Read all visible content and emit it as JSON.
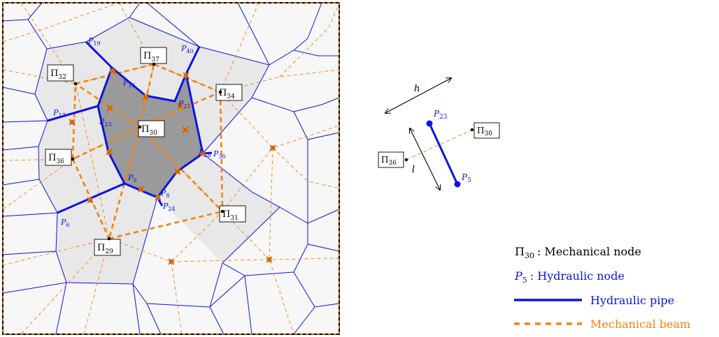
{
  "colors": {
    "hydraulic": "#0a14e6",
    "mechanical": "#f5820f",
    "cell_light": "#e8e8e8",
    "cell_dark": "#9a9a9a",
    "cell_background": "#f7f7f7",
    "text": "#000000"
  },
  "mesh": {
    "mechanical_nodes": [
      {
        "sym": "Π",
        "sub": "32"
      },
      {
        "sym": "Π",
        "sub": "37"
      },
      {
        "sym": "Π",
        "sub": "34"
      },
      {
        "sym": "Π",
        "sub": "30"
      },
      {
        "sym": "Π",
        "sub": "36"
      },
      {
        "sym": "Π",
        "sub": "31"
      },
      {
        "sym": "Π",
        "sub": "29"
      }
    ],
    "hydraulic_nodes": [
      {
        "sym": "P",
        "sub": "19"
      },
      {
        "sym": "P",
        "sub": "40"
      },
      {
        "sym": "P",
        "sub": "16"
      },
      {
        "sym": "P",
        "sub": "21"
      },
      {
        "sym": "P",
        "sub": "17"
      },
      {
        "sym": "P",
        "sub": "23"
      },
      {
        "sym": "P",
        "sub": "28"
      },
      {
        "sym": "P",
        "sub": "36"
      },
      {
        "sym": "P",
        "sub": "5"
      },
      {
        "sym": "P",
        "sub": "8"
      },
      {
        "sym": "P",
        "sub": "24"
      },
      {
        "sym": "P",
        "sub": "6"
      }
    ]
  },
  "detail": {
    "h_label": "h",
    "l_label": "l",
    "p_top": {
      "sym": "P",
      "sub": "23"
    },
    "p_bottom": {
      "sym": "P",
      "sub": "5"
    },
    "pi_right": {
      "sym": "Π",
      "sub": "30"
    },
    "pi_left": {
      "sym": "Π",
      "sub": "36"
    }
  },
  "legend": {
    "mech_node": {
      "sym": "Π",
      "sub": "30",
      "text": ": Mechanical node"
    },
    "hyd_node": {
      "sym": "P",
      "sub": "5",
      "text": ": Hydraulic node"
    },
    "pipe": "Hydraulic pipe",
    "beam": "Mechanical beam"
  }
}
